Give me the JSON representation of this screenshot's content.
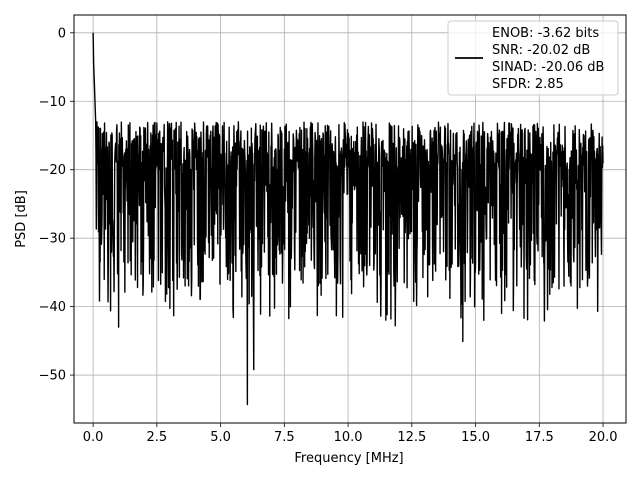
{
  "chart_data": {
    "type": "line",
    "title": "",
    "xlabel": "Frequency [MHz]",
    "ylabel": "PSD [dB]",
    "xlim": [
      -0.75,
      20.9
    ],
    "ylim": [
      -57.0,
      2.6
    ],
    "xticks": [
      0.0,
      2.5,
      5.0,
      7.5,
      10.0,
      12.5,
      15.0,
      17.5,
      20.0
    ],
    "xtick_labels": [
      "0.0",
      "2.5",
      "5.0",
      "7.5",
      "10.0",
      "12.5",
      "15.0",
      "17.5",
      "20.0"
    ],
    "yticks": [
      0,
      -10,
      -20,
      -30,
      -40,
      -50
    ],
    "ytick_labels": [
      "0",
      "−10",
      "−20",
      "−30",
      "−40",
      "−50"
    ],
    "grid": true,
    "legend_placement": "top-right",
    "legend_entries": [
      "ENOB: -3.62 bits",
      "SNR: -20.02 dB",
      "SINAD: -20.06 dB",
      "SFDR: 2.85"
    ],
    "series": [
      {
        "color": "#000000",
        "description": "noise-like PSD trace, 0 to 20 MHz; peak 0 dB at 0 MHz, noise band about -13 to -37 dB, lowest dip about -54 dB near 6.05 MHz",
        "peak_points": [
          [
            0.0,
            0.0
          ],
          [
            0.02,
            -4.5
          ],
          [
            0.05,
            -7.5
          ],
          [
            0.1,
            -13
          ]
        ],
        "notable_dips": [
          [
            6.05,
            -54.3
          ],
          [
            6.3,
            -49.2
          ],
          [
            1.0,
            -43.0
          ],
          [
            14.5,
            -45.1
          ],
          [
            11.85,
            -42.8
          ],
          [
            5.5,
            -41.6
          ],
          [
            16.9,
            -41.7
          ],
          [
            17.7,
            -42.1
          ]
        ],
        "noise_band": {
          "upper": -13,
          "lower": -37,
          "mean": -21
        },
        "x_range": [
          0.0,
          20.0
        ]
      }
    ]
  }
}
